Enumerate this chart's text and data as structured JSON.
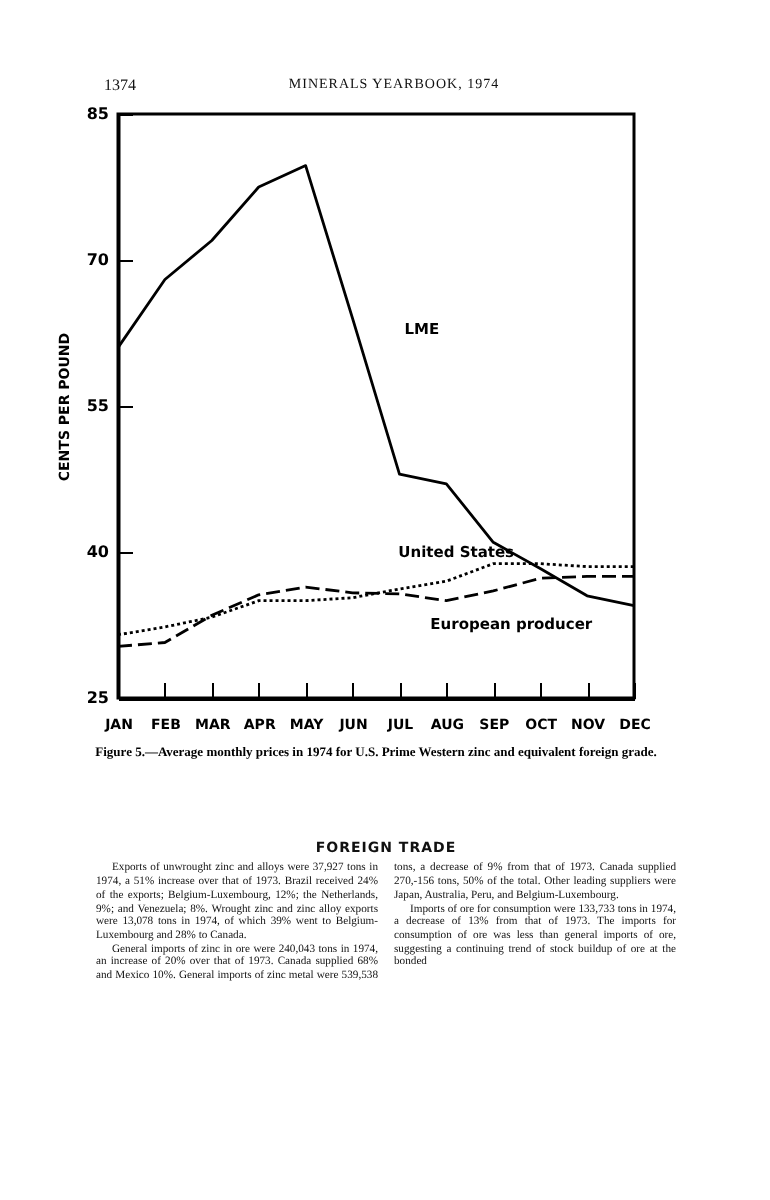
{
  "chart_data": {
    "type": "line",
    "title": "Figure 5.—Average monthly prices in 1974 for U.S. Prime Western zinc and equivalent foreign grade.",
    "ylabel": "CENTS PER POUND",
    "categories": [
      "JAN",
      "FEB",
      "MAR",
      "APR",
      "MAY",
      "JUN",
      "JUL",
      "AUG",
      "SEP",
      "OCT",
      "NOV",
      "DEC"
    ],
    "ylim": [
      25,
      85
    ],
    "yticks": [
      25,
      40,
      55,
      70,
      85
    ],
    "grid": false,
    "legend": false,
    "series": [
      {
        "name": "LME",
        "color": "#000000",
        "line_style": "solid",
        "values": [
          61,
          68,
          72,
          77.5,
          79.7,
          64,
          48,
          47,
          41,
          38.3,
          35.5,
          34.5
        ]
      },
      {
        "name": "United States",
        "color": "#000000",
        "line_style": "dotted",
        "values": [
          31.5,
          32.3,
          33.3,
          35,
          35,
          35.3,
          36.2,
          37,
          38.8,
          38.8,
          38.5,
          38.5
        ]
      },
      {
        "name": "European producer",
        "color": "#000000",
        "line_style": "dashed",
        "values": [
          30.3,
          30.7,
          33.5,
          35.6,
          36.4,
          35.8,
          35.7,
          35,
          36,
          37.3,
          37.5,
          37.5
        ]
      }
    ],
    "annotations": [
      "1374",
      "MINERALS YEARBOOK, 1974",
      "FOREIGN TRADE",
      "Exports of unwrought zinc and alloys were 37,927 tons in 1974, a 51% increase over that of 1973. Brazil received 24% of the exports; Belgium-Luxembourg, 12%; the Netherlands, 9%; and Venezuela; 8%. Wrought zinc and zinc alloy exports were 13,078 tons in 1974, of which 39% went to Belgium-Luxembourg and 28% to Canada.",
      "General imports of zinc in ore were 240,043 tons in 1974, an increase of 20% over that of 1973. Canada supplied 68% and Mexico 10%. General imports of zinc metal were 539,538 tons, a decrease of 9% from that of 1973. Canada supplied 270,-156 tons, 50% of the total. Other leading suppliers were Japan, Australia, Peru, and Belgium-Luxembourg.",
      "Imports of ore for consumption were 133,733 tons in 1974, a decrease of 13% from that of 1973. The imports for consumption of ore was less than general imports of ore, suggesting a continuing trend of stock buildup of ore at the bonded"
    ]
  }
}
